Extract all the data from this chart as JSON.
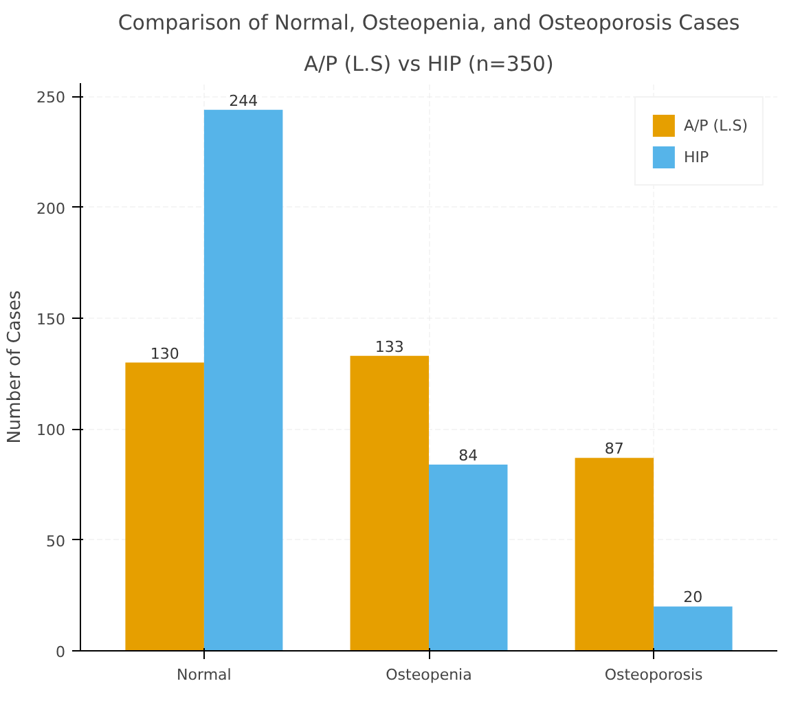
{
  "chart_data": {
    "type": "bar",
    "title": "Comparison of Normal, Osteopenia, and Osteoporosis Cases",
    "subtitle": "A/P (L.S) vs HIP (n=350)",
    "ylabel": "Number of Cases",
    "categories": [
      "Normal",
      "Osteopenia",
      "Osteoporosis"
    ],
    "series": [
      {
        "name": "A/P (L.S)",
        "color": "#e69f00",
        "values": [
          130,
          133,
          87
        ]
      },
      {
        "name": "HIP",
        "color": "#56b4e9",
        "values": [
          244,
          84,
          20
        ]
      }
    ],
    "ylim": [
      0,
      256
    ],
    "yticks": [
      0,
      50,
      100,
      150,
      200,
      250
    ],
    "grid": true,
    "legend": "top right",
    "data_labels": true
  }
}
